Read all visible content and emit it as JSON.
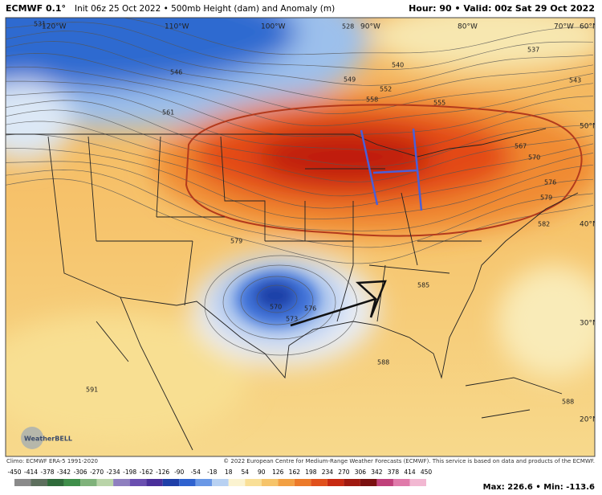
{
  "header": {
    "model": "ECMWF 0.1°",
    "title": "Init 06z 25 Oct 2022 • 500mb Height (dam) and Anomaly (m)",
    "valid": "Hour: 90 • Valid: 00z Sat 29 Oct 2022"
  },
  "map": {
    "longitude_labels": [
      "120°W",
      "110°W",
      "100°W",
      "90°W",
      "80°W",
      "70°W"
    ],
    "latitude_labels": [
      "60°N",
      "50°N",
      "40°N",
      "30°N",
      "20°N"
    ],
    "contour_labels": [
      531,
      546,
      561,
      528,
      549,
      552,
      558,
      540,
      555,
      537,
      543,
      567,
      570,
      576,
      579,
      582,
      585,
      588,
      591,
      579,
      570,
      573,
      576,
      588
    ]
  },
  "logo": "WeatherBELL",
  "footer": {
    "climo": "Climo: ECMWF ERA-5 1991-2020",
    "copyright": "© 2022 European Centre for Medium-Range Weather Forecasts (ECMWF). This service is based on data and products of the ECMWF."
  },
  "colorbar": {
    "ticks": [
      -450,
      -414,
      -378,
      -342,
      -306,
      -270,
      -234,
      -198,
      -162,
      -126,
      -90,
      -54,
      -18,
      18,
      54,
      90,
      126,
      162,
      198,
      234,
      270,
      306,
      342,
      378,
      414,
      450
    ]
  },
  "stats": "Max: 226.6 • Min: -113.6"
}
